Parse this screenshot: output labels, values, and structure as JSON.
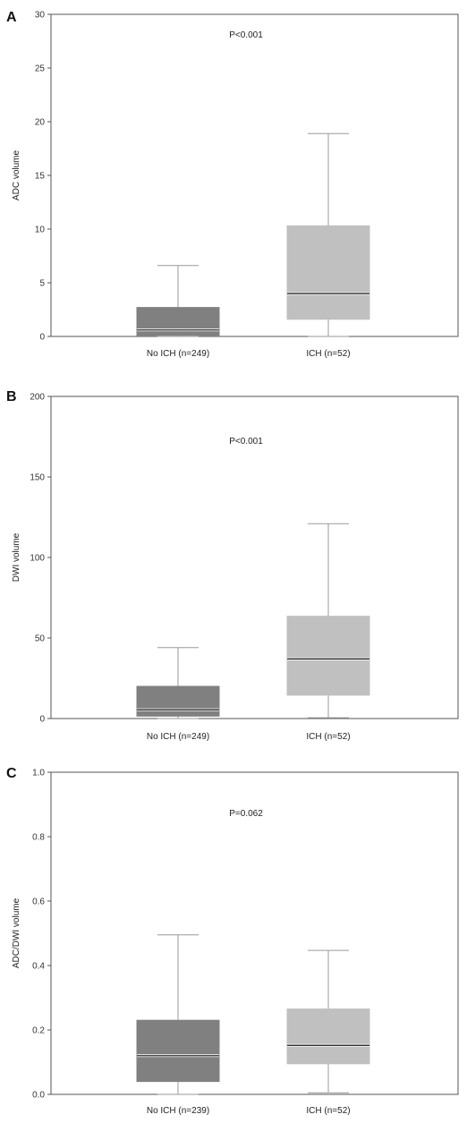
{
  "chart_data": [
    {
      "type": "box",
      "panel": "A",
      "annotation": "P<0.001",
      "ylabel": "ADC volume",
      "ylim": [
        0,
        30
      ],
      "yticks": [
        0,
        5,
        10,
        15,
        20,
        25,
        30
      ],
      "categories": [
        "No ICH (n=249)",
        "ICH (n=52)"
      ],
      "boxes": [
        {
          "category": "No ICH (n=249)",
          "min": 0,
          "q1": 0.1,
          "median": 0.6,
          "q3": 2.7,
          "max": 6.6,
          "color": "#808080"
        },
        {
          "category": "ICH (n=52)",
          "min": 0,
          "q1": 1.6,
          "median": 4.0,
          "q3": 10.3,
          "max": 18.9,
          "color": "#c0c0c0"
        }
      ]
    },
    {
      "type": "box",
      "panel": "B",
      "annotation": "P<0.001",
      "ylabel": "DWI volume",
      "ylim": [
        0,
        200
      ],
      "yticks": [
        0,
        50,
        100,
        150,
        200
      ],
      "categories": [
        "No ICH (n=249)",
        "ICH (n=52)"
      ],
      "boxes": [
        {
          "category": "No ICH (n=249)",
          "min": 0,
          "q1": 1.5,
          "median": 5.5,
          "q3": 20,
          "max": 44,
          "color": "#808080"
        },
        {
          "category": "ICH (n=52)",
          "min": 0.5,
          "q1": 14.5,
          "median": 37,
          "q3": 63.5,
          "max": 121,
          "color": "#c0c0c0"
        }
      ]
    },
    {
      "type": "box",
      "panel": "C",
      "annotation": "P=0.062",
      "ylabel": "ADC/DWI volume",
      "ylim": [
        0,
        1.0
      ],
      "yticks": [
        "0.0",
        "0.2",
        "0.4",
        "0.6",
        "0.8",
        "1.0"
      ],
      "categories": [
        "No ICH (n=239)",
        "ICH (n=52)"
      ],
      "boxes": [
        {
          "category": "No ICH (n=239)",
          "min": 0.0,
          "q1": 0.04,
          "median": 0.12,
          "q3": 0.23,
          "max": 0.495,
          "color": "#808080"
        },
        {
          "category": "ICH (n=52)",
          "min": 0.005,
          "q1": 0.095,
          "median": 0.152,
          "q3": 0.265,
          "max": 0.447,
          "color": "#c0c0c0"
        }
      ]
    }
  ]
}
